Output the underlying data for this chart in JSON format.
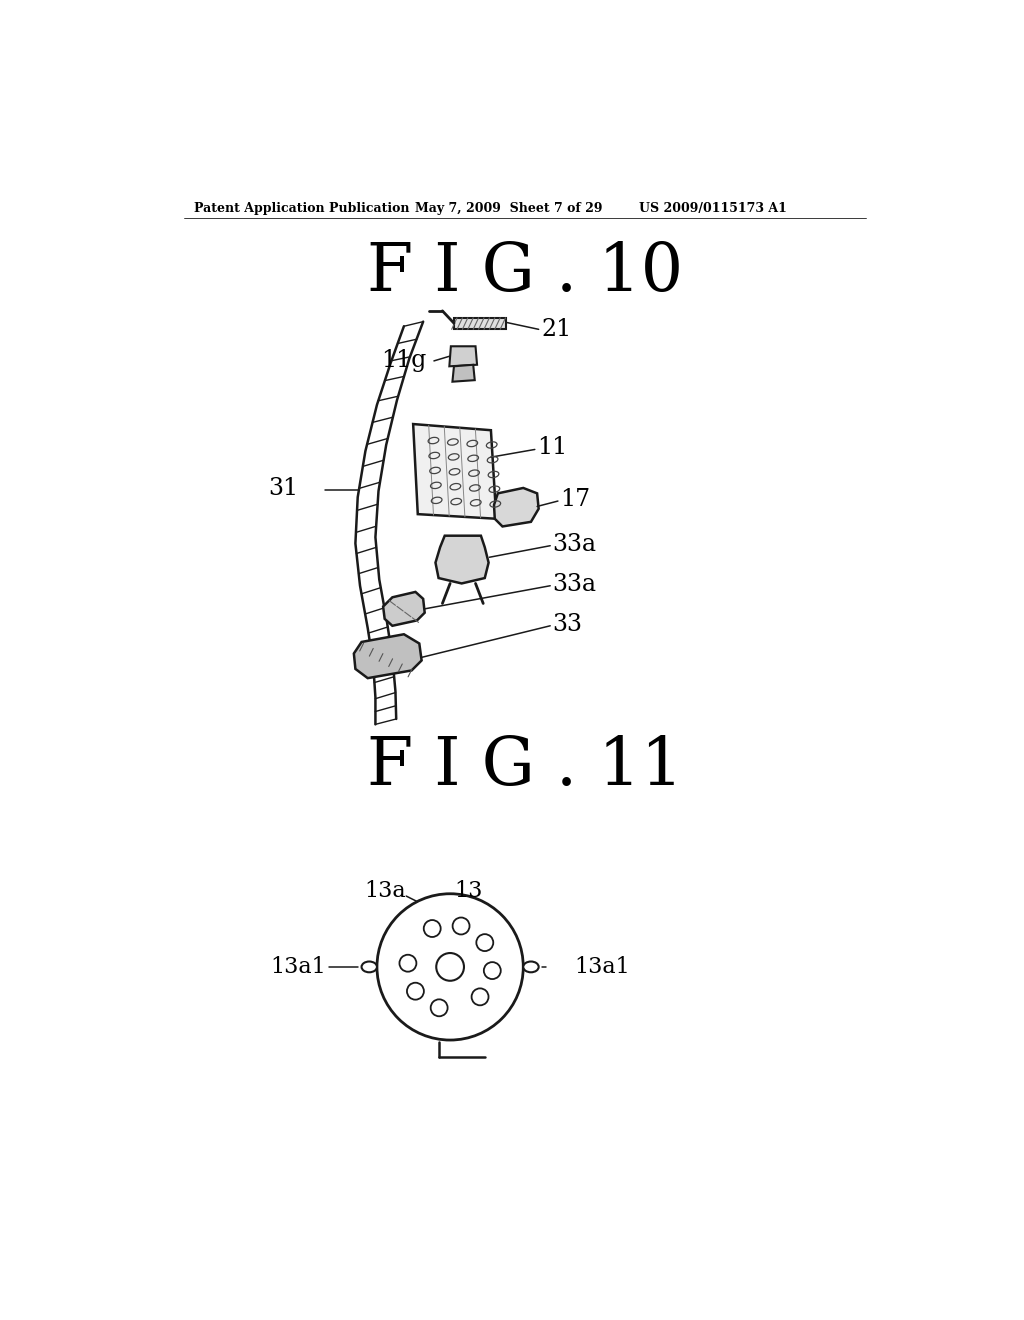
{
  "background_color": "#ffffff",
  "text_color": "#000000",
  "line_color": "#1a1a1a",
  "header_left": "Patent Application Publication",
  "header_mid": "May 7, 2009  Sheet 7 of 29",
  "header_right": "US 2009/0115173 A1",
  "fig10_title": "F I G . 10",
  "fig11_title": "F I G . 11",
  "label_21": "21",
  "label_11g": "11g",
  "label_31": "31",
  "label_11": "11",
  "label_17": "17",
  "label_33a_upper": "33a",
  "label_33a_lower": "33a",
  "label_33": "33",
  "label_13a": "13a",
  "label_13": "13",
  "label_13a1_left": "13a1",
  "label_13a1_right": "13a1"
}
